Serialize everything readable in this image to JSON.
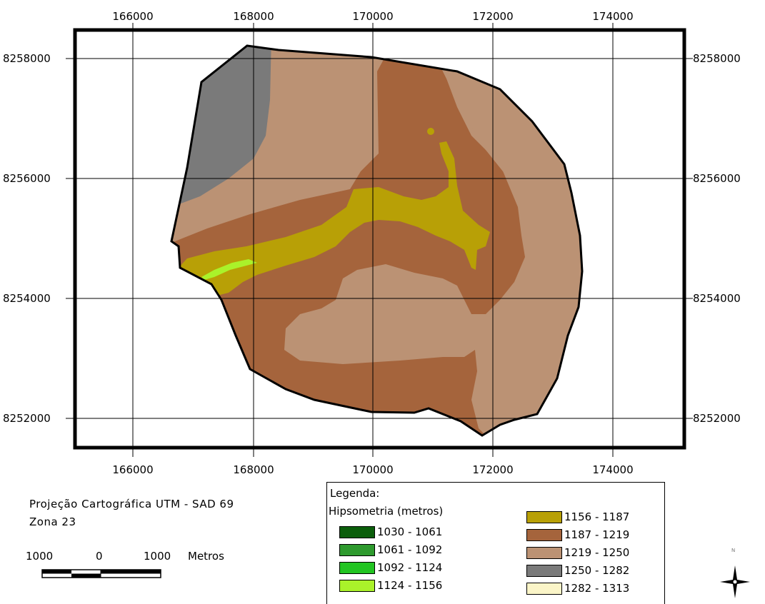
{
  "map": {
    "x_ticks": [
      "166000",
      "168000",
      "170000",
      "172000",
      "174000"
    ],
    "y_ticks": [
      "8258000",
      "8256000",
      "8254000",
      "8252000"
    ]
  },
  "projection": {
    "line1": "Projeção Cartográfica UTM - SAD 69",
    "line2": "Zona 23"
  },
  "scale_bar": {
    "label_left": "1000",
    "label_mid": "0",
    "label_right": "1000",
    "unit": "Metros"
  },
  "legend": {
    "title": "Legenda:",
    "subtitle": "Hipsometria (metros)",
    "items": [
      {
        "label": "1030 - 1061",
        "color": "#0b5e0b"
      },
      {
        "label": "1061 - 1092",
        "color": "#2e9a2e"
      },
      {
        "label": "1092 - 1124",
        "color": "#22c422"
      },
      {
        "label": "1124 - 1156",
        "color": "#aaf22a"
      },
      {
        "label": "1156 - 1187",
        "color": "#b8a006"
      },
      {
        "label": "1187 - 1219",
        "color": "#a5643c"
      },
      {
        "label": "1219 - 1250",
        "color": "#bb9274"
      },
      {
        "label": "1250 - 1282",
        "color": "#7a7a7a"
      },
      {
        "label": "1282 - 1313",
        "color": "#fbf5c8"
      }
    ]
  },
  "north_arrow": {
    "letter": "N"
  }
}
